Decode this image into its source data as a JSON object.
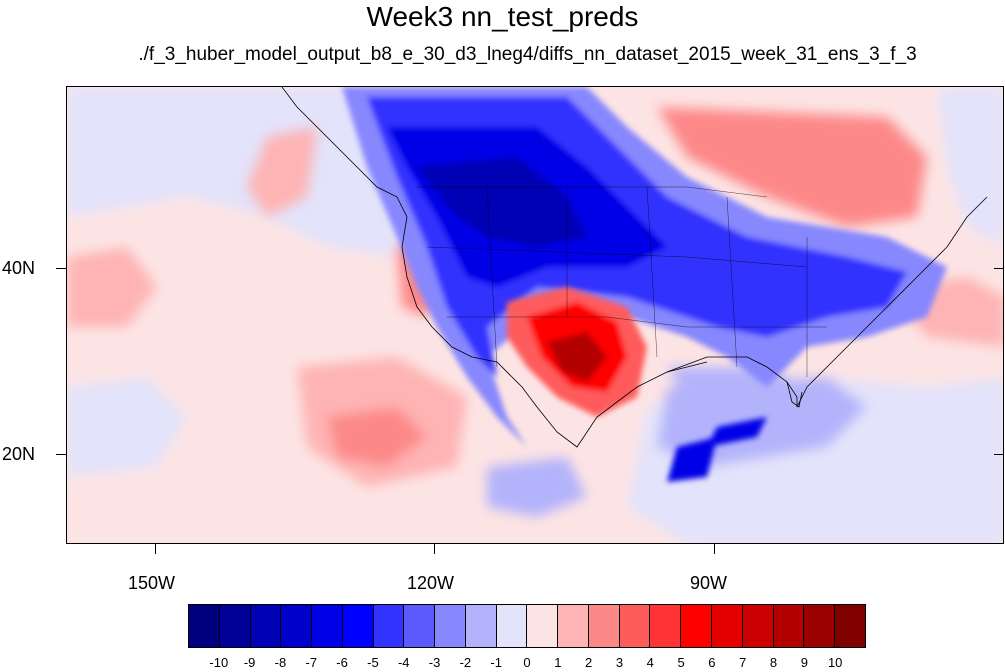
{
  "title": "Week3 nn_test_preds",
  "subtitle": "./f_3_huber_model_output_b8_e_30_d3_lneg4/diffs_nn_dataset_2015_week_31_ens_3_f_3",
  "map": {
    "lon_range": [
      -165,
      -65
    ],
    "lat_range": [
      10,
      59
    ],
    "lon_ticks": [
      {
        "value": -150,
        "label": "150W"
      },
      {
        "value": -120,
        "label": "120W"
      },
      {
        "value": -90,
        "label": "90W"
      }
    ],
    "lat_ticks": [
      {
        "value": 20,
        "label": "20N"
      },
      {
        "value": 40,
        "label": "40N"
      }
    ],
    "background_color": "#fde4e4"
  },
  "colorbar": {
    "colors": [
      "#00007f",
      "#000098",
      "#0000b4",
      "#0000cc",
      "#0000e6",
      "#0000fe",
      "#3333ff",
      "#5b5bfd",
      "#8787fe",
      "#b3b3fb",
      "#e3e3fb",
      "#fde4e4",
      "#feb4b4",
      "#fd8888",
      "#fe5b5b",
      "#fe3434",
      "#fe0000",
      "#e50000",
      "#cc0000",
      "#b30000",
      "#9a0000",
      "#800000"
    ],
    "labels": [
      "-10",
      "-9",
      "-8",
      "-7",
      "-6",
      "-5",
      "-4",
      "-3",
      "-2",
      "-1",
      "0",
      "1",
      "2",
      "3",
      "4",
      "5",
      "6",
      "7",
      "8",
      "9",
      "10"
    ]
  }
}
